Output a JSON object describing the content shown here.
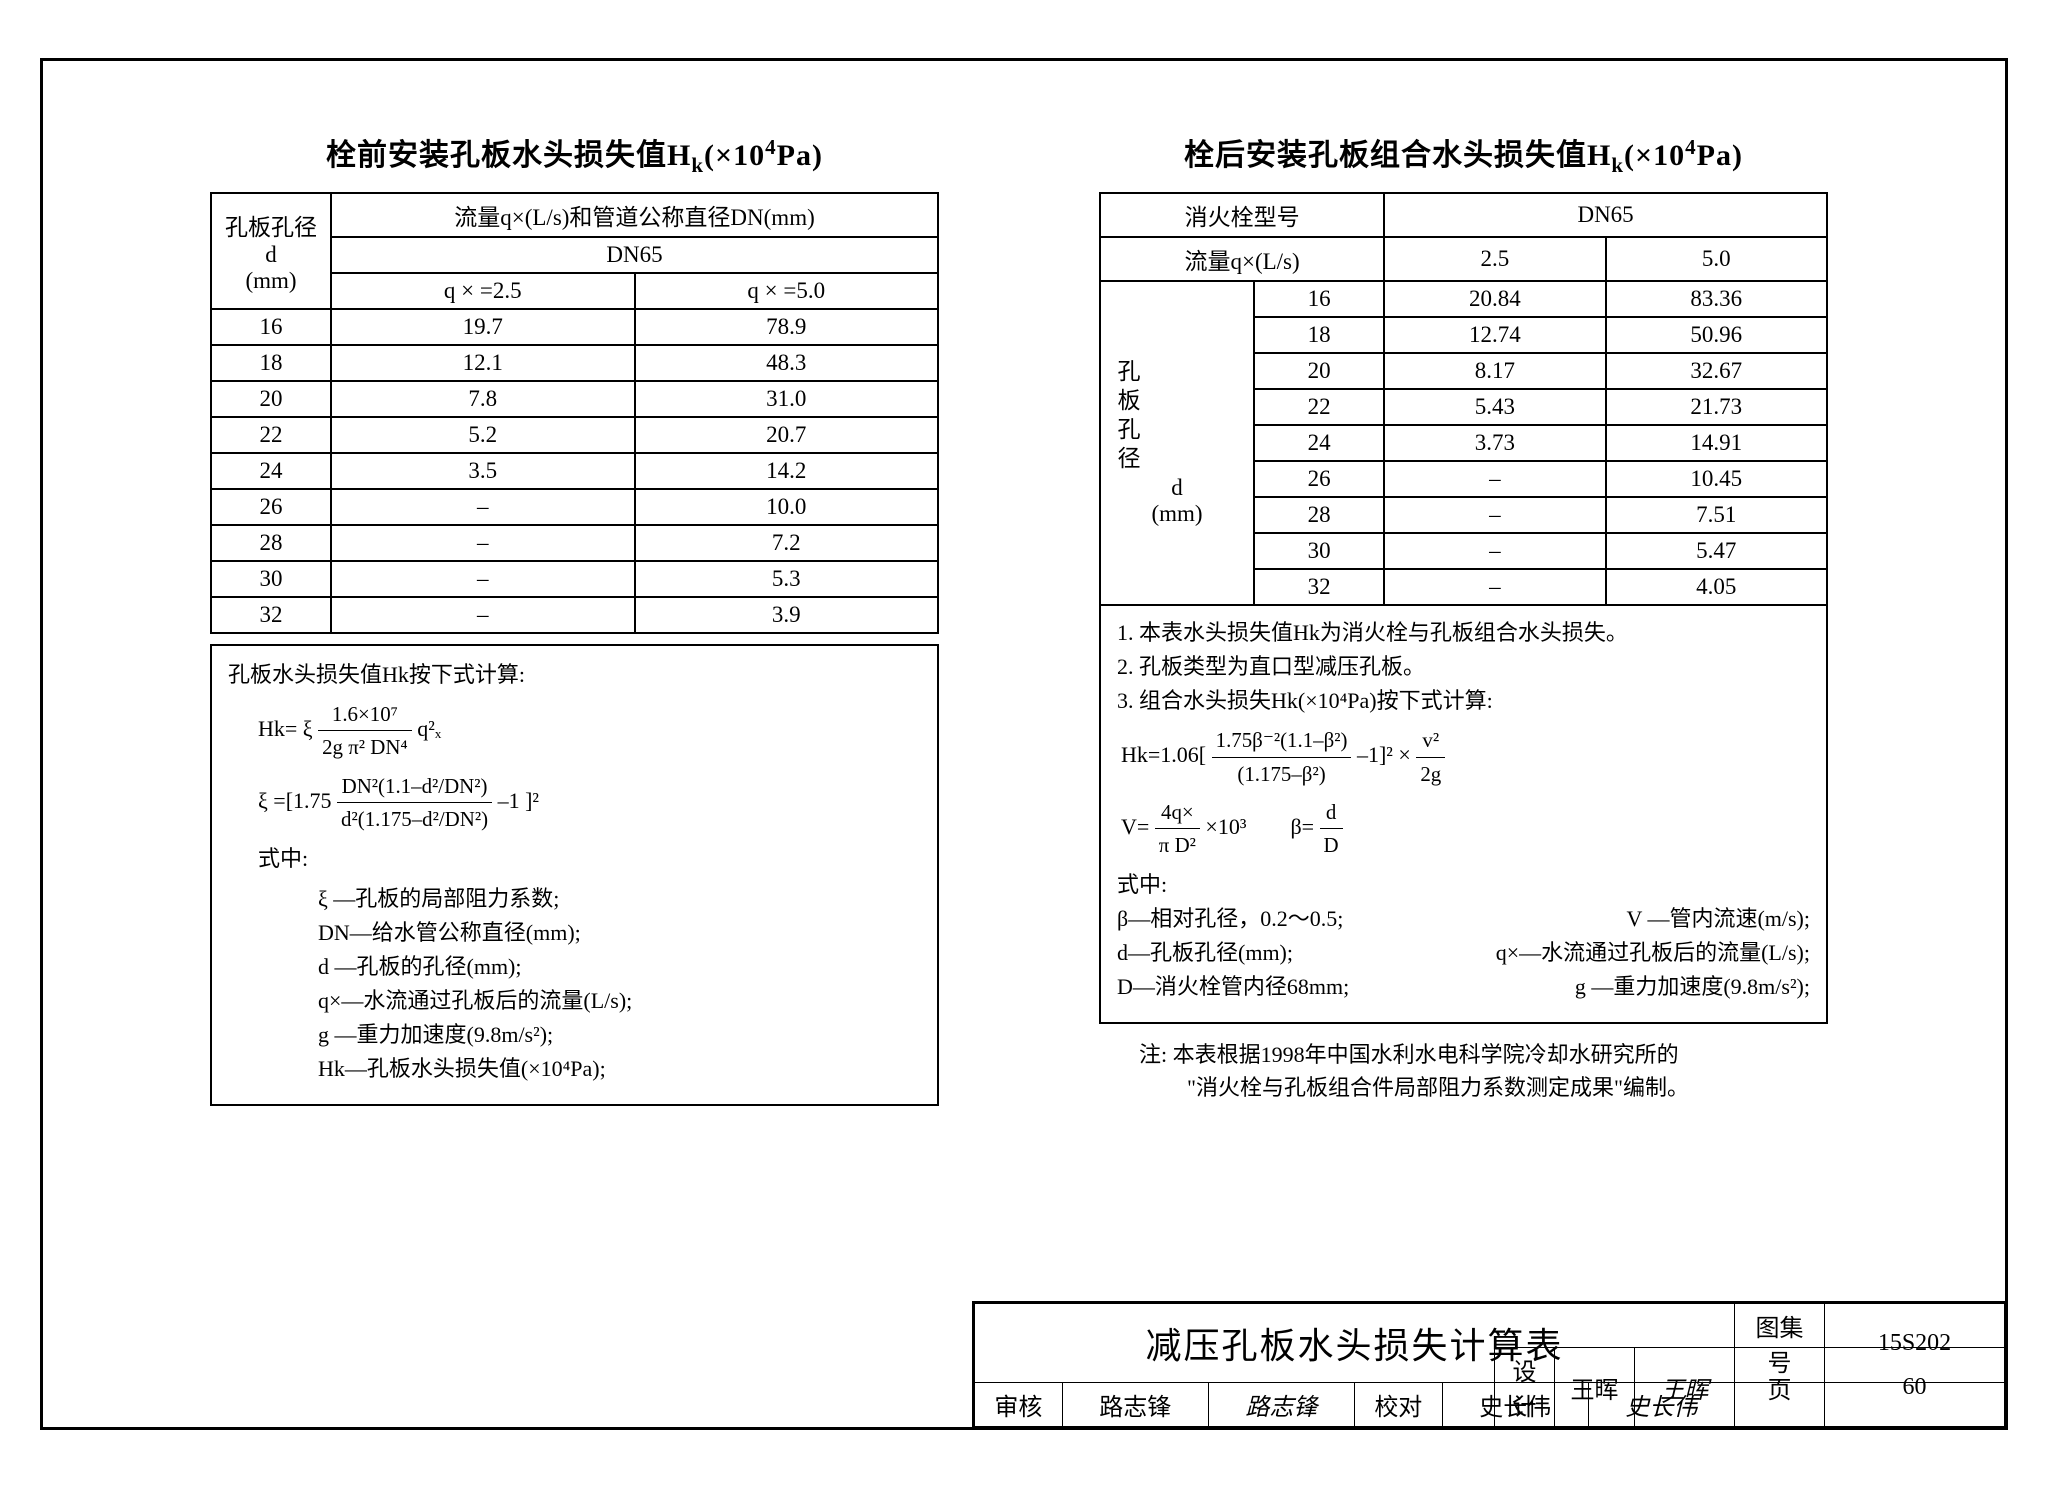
{
  "left": {
    "title_prefix": "栓前安装孔板水头损失值H",
    "title_sub": "k",
    "title_suffix": "(×10",
    "title_sup": "4",
    "title_end": "Pa)",
    "header_d_label": "孔板孔径",
    "header_d_sym": "d",
    "header_d_unit": "(mm)",
    "header_q_label": "流量q×(L/s)和管道公称直径DN(mm)",
    "header_dn": "DN65",
    "col_q25": "q × =2.5",
    "col_q50": "q × =5.0",
    "rows": [
      {
        "d": "16",
        "a": "19.7",
        "b": "78.9"
      },
      {
        "d": "18",
        "a": "12.1",
        "b": "48.3"
      },
      {
        "d": "20",
        "a": "7.8",
        "b": "31.0"
      },
      {
        "d": "22",
        "a": "5.2",
        "b": "20.7"
      },
      {
        "d": "24",
        "a": "3.5",
        "b": "14.2"
      },
      {
        "d": "26",
        "a": "–",
        "b": "10.0"
      },
      {
        "d": "28",
        "a": "–",
        "b": "7.2"
      },
      {
        "d": "30",
        "a": "–",
        "b": "5.3"
      },
      {
        "d": "32",
        "a": "–",
        "b": "3.9"
      }
    ],
    "formula_intro": "孔板水头损失值Hk按下式计算:",
    "hk_eq_lhs": "Hk= ξ",
    "hk_frac_num": "1.6×10⁷",
    "hk_frac_den": "2g π² DN⁴",
    "hk_eq_rhs": " q²ₓ",
    "xi_lhs": "ξ =[1.75",
    "xi_num": "DN²(1.1–d²/DN²)",
    "xi_den": "d²(1.175–d²/DN²)",
    "xi_rhs": " –1 ]²",
    "where_label": "式中:",
    "defs": [
      "ξ —孔板的局部阻力系数;",
      "DN—给水管公称直径(mm);",
      "d —孔板的孔径(mm);",
      "q×—水流通过孔板后的流量(L/s);",
      "g —重力加速度(9.8m/s²);",
      "Hk—孔板水头损失值(×10⁴Pa);"
    ]
  },
  "right": {
    "title_prefix": "栓后安装孔板组合水头损失值H",
    "title_sub": "k",
    "title_suffix": "(×10",
    "title_sup": "4",
    "title_end": "Pa)",
    "header_hydrant": "消火栓型号",
    "header_dn": "DN65",
    "header_flow": "流量q×(L/s)",
    "col_25": "2.5",
    "col_50": "5.0",
    "side_label": "孔板孔径",
    "side_sym": "d",
    "side_unit": "(mm)",
    "rows": [
      {
        "d": "16",
        "a": "20.84",
        "b": "83.36"
      },
      {
        "d": "18",
        "a": "12.74",
        "b": "50.96"
      },
      {
        "d": "20",
        "a": "8.17",
        "b": "32.67"
      },
      {
        "d": "22",
        "a": "5.43",
        "b": "21.73"
      },
      {
        "d": "24",
        "a": "3.73",
        "b": "14.91"
      },
      {
        "d": "26",
        "a": "–",
        "b": "10.45"
      },
      {
        "d": "28",
        "a": "–",
        "b": "7.51"
      },
      {
        "d": "30",
        "a": "–",
        "b": "5.47"
      },
      {
        "d": "32",
        "a": "–",
        "b": "4.05"
      }
    ],
    "note1": "1. 本表水头损失值Hk为消火栓与孔板组合水头损失。",
    "note2": "2. 孔板类型为直口型减压孔板。",
    "note3": "3. 组合水头损失Hk(×10⁴Pa)按下式计算:",
    "hk_lhs": "Hk=1.06[",
    "hk_num": "1.75β⁻²(1.1–β²)",
    "hk_den": "(1.175–β²)",
    "hk_rhs1": " –1]²  ×  ",
    "hk_frac2_num": "v²",
    "hk_frac2_den": "2g",
    "v_lhs": "V= ",
    "v_num": "4q×",
    "v_den": "π D²",
    "v_rhs": " ×10³",
    "beta_lhs": "β= ",
    "beta_num": "d",
    "beta_den": "D",
    "where_label": "式中:",
    "def_line1a": "β—相对孔径，0.2～0.5;",
    "def_line1b": "V —管内流速(m/s);",
    "def_line2a": "d—孔板孔径(mm);",
    "def_line2b": "q×—水流通过孔板后的流量(L/s);",
    "def_line3a": "D—消火栓管内径68mm;",
    "def_line3b": "g —重力加速度(9.8m/s²);",
    "footnote1": "注:  本表根据1998年中国水利水电科学院冷却水研究所的",
    "footnote2": "\"消火栓与孔板组合件局部阻力系数测定成果\"编制。"
  },
  "titleblock": {
    "main": "减压孔板水头损失计算表",
    "set_label": "图集号",
    "set_value": "15S202",
    "shenhe": "审核",
    "shenhe_name": "路志锋",
    "shenhe_sig": "路志锋",
    "jiaodui": "校对",
    "jiaodui_name": "史长伟",
    "jiaodui_sig": "史长伟",
    "sheji": "设计",
    "sheji_name": "王晖",
    "sheji_sig": "王晖",
    "page_label": "页",
    "page_value": "60"
  }
}
